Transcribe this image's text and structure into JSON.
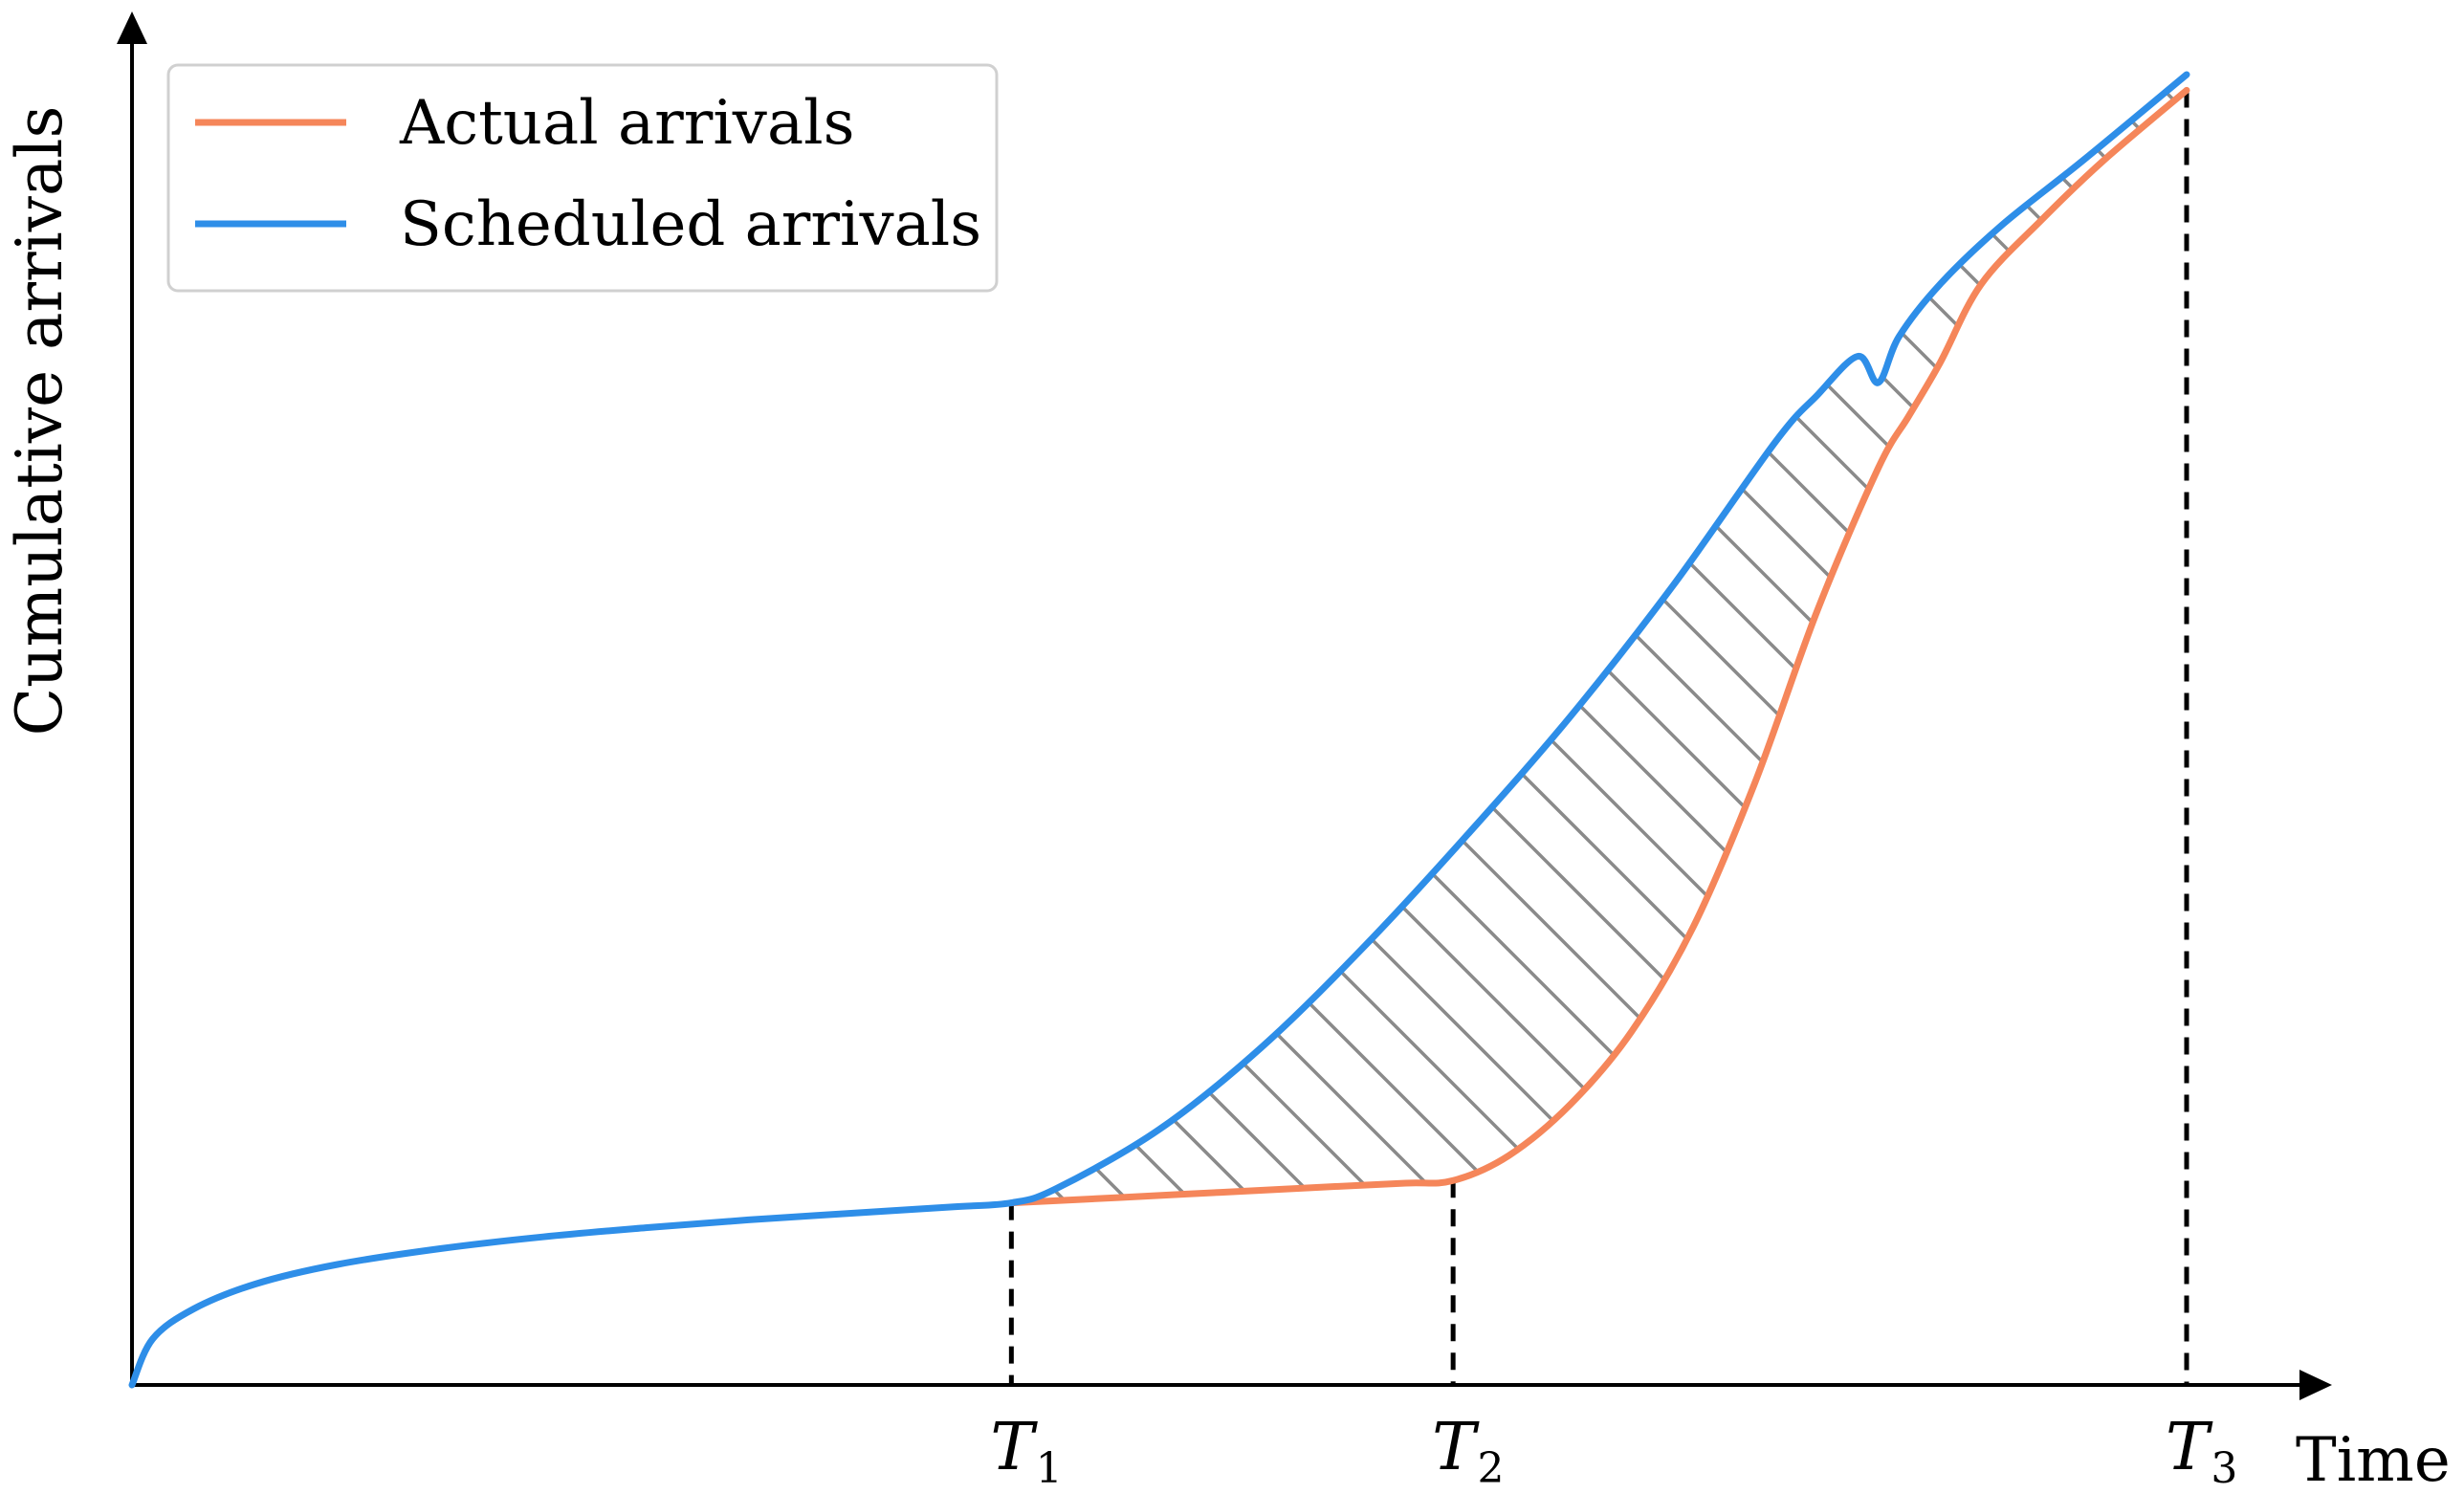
{
  "chart_data": {
    "type": "line",
    "xlabel": "Time",
    "ylabel": "Cumulative arrivals",
    "axis_ticks": [
      "T",
      "T",
      "T"
    ],
    "axis_ticks_subscripts": [
      "1",
      "2",
      "3"
    ],
    "xlim": [
      0,
      1.0
    ],
    "ylim": [
      0,
      1.0
    ],
    "grid": false,
    "legend_position": "top-left",
    "colors": {
      "actual": "#f5865a",
      "scheduled": "#2e8ee8",
      "hatch": "#8a8a8a"
    },
    "markers": [
      {
        "label": "T",
        "sub": "1",
        "x": 0.428
      },
      {
        "label": "T",
        "sub": "2",
        "x": 0.643
      },
      {
        "label": "T",
        "sub": "3",
        "x": 1.0
      }
    ],
    "series": [
      {
        "name": "Actual arrivals",
        "color": "#f5865a",
        "x": [
          0.428,
          0.48,
          0.53,
          0.58,
          0.62,
          0.643,
          0.67,
          0.7,
          0.73,
          0.76,
          0.79,
          0.82,
          0.85,
          0.865,
          0.88,
          0.9,
          0.93,
          0.96,
          1.0
        ],
        "y": [
          0.139,
          0.143,
          0.147,
          0.151,
          0.154,
          0.156,
          0.175,
          0.214,
          0.27,
          0.35,
          0.46,
          0.59,
          0.7,
          0.74,
          0.78,
          0.84,
          0.89,
          0.935,
          0.988
        ]
      },
      {
        "name": "Scheduled arrivals",
        "color": "#2e8ee8",
        "x": [
          0.0,
          0.01,
          0.03,
          0.06,
          0.1,
          0.15,
          0.2,
          0.25,
          0.3,
          0.35,
          0.4,
          0.428,
          0.45,
          0.5,
          0.55,
          0.6,
          0.65,
          0.7,
          0.75,
          0.8,
          0.82,
          0.84,
          0.85,
          0.86,
          0.88,
          0.91,
          0.95,
          1.0
        ],
        "y": [
          0.0,
          0.035,
          0.058,
          0.077,
          0.092,
          0.104,
          0.113,
          0.12,
          0.126,
          0.131,
          0.136,
          0.139,
          0.15,
          0.195,
          0.258,
          0.335,
          0.42,
          0.51,
          0.61,
          0.72,
          0.755,
          0.785,
          0.765,
          0.8,
          0.84,
          0.885,
          0.935,
          1.0
        ]
      }
    ]
  }
}
